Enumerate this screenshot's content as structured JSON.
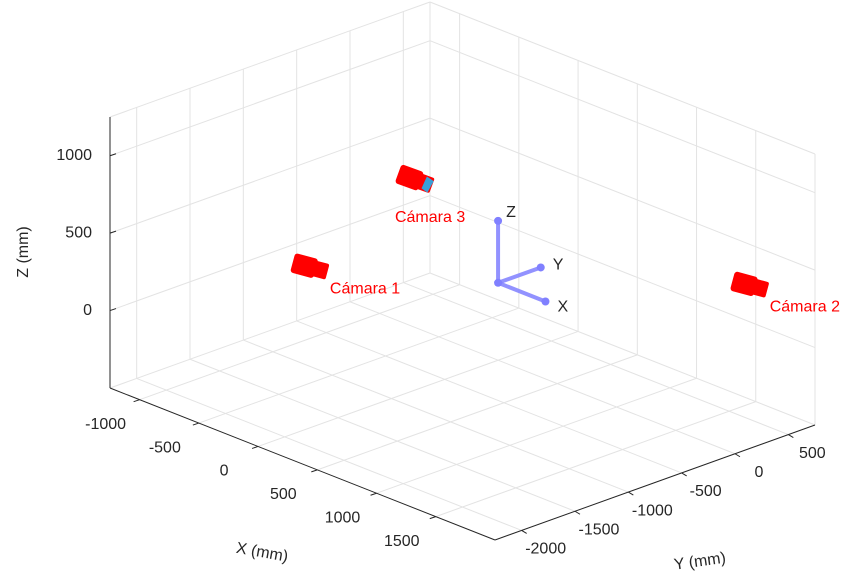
{
  "chart_data": {
    "type": "scatter3d",
    "xlabel": "X (mm)",
    "ylabel": "Y (mm)",
    "zlabel": "Z (mm)",
    "xlim": [
      -1250,
      2000
    ],
    "ylim": [
      -2250,
      750
    ],
    "zlim": [
      -500,
      1250
    ],
    "xticks": [
      -1000,
      -500,
      0,
      500,
      1000,
      1500
    ],
    "yticks": [
      -2000,
      -1500,
      -1000,
      -500,
      0,
      500
    ],
    "zticks": [
      0,
      500,
      1000
    ],
    "grid": true,
    "points": [
      {
        "name": "Cámara 1",
        "x": -930,
        "y": -730,
        "z": 0,
        "color": "#ff0000"
      },
      {
        "name": "Cámara 2",
        "x": 1450,
        "y": 750,
        "z": 235,
        "color": "#ff0000"
      },
      {
        "name": "Cámara 3",
        "x": 245,
        "y": -1050,
        "z": 1000,
        "color": "#ff0000"
      }
    ],
    "frame": {
      "labels": [
        "X",
        "Y",
        "Z"
      ],
      "length": 400,
      "color": "#8080ff"
    }
  }
}
